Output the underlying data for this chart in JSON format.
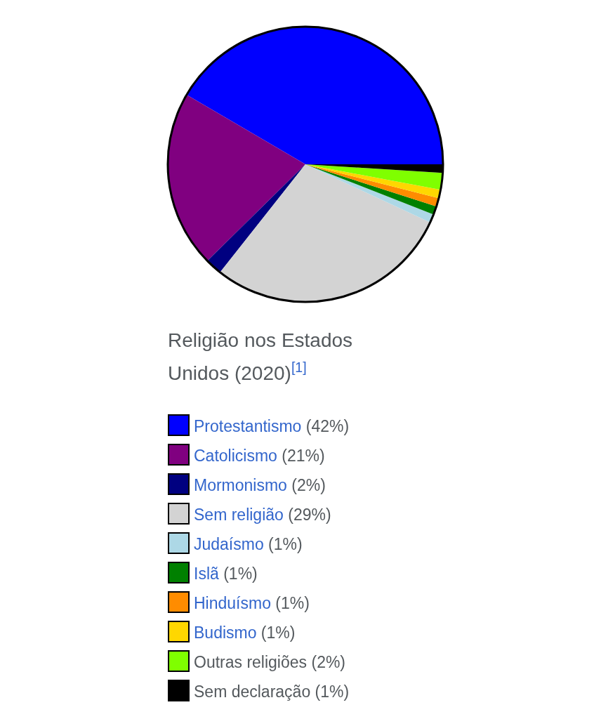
{
  "chart_data": {
    "type": "pie",
    "title": "Religião nos Estados Unidos (2020)$^{[1]}$",
    "categories": [
      "Protestantismo",
      "Catolicismo",
      "Mormonismo",
      "Sem religião",
      "Judaísmo",
      "Islã",
      "Hinduísmo",
      "Budismo",
      "Outras religiões",
      "Sem declaração"
    ],
    "values": [
      42,
      21,
      2,
      29,
      1,
      1,
      1,
      1,
      2,
      1
    ],
    "value_labels": [
      "(42%)",
      "(21%)",
      "(2%)",
      "(29%)",
      "(1%)",
      "(1%)",
      "(1%)",
      "(1%)",
      "(2%)",
      "(1%)"
    ],
    "colors": [
      "#0000ff",
      "#800080",
      "#000080",
      "#d3d3d3",
      "#add8e6",
      "#008000",
      "#ff8c00",
      "#ffd700",
      "#7fff00",
      "#000000"
    ],
    "legend": "bottom"
  }
}
